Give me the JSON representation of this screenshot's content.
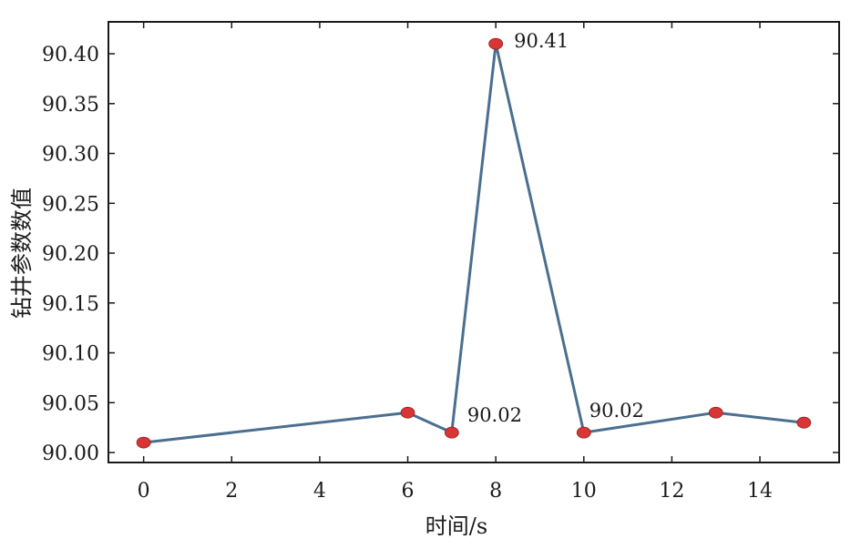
{
  "chart_data": {
    "type": "line",
    "xlabel": "时间/s",
    "ylabel": "钻井参数数值",
    "xlim": [
      -0.8,
      15.8
    ],
    "ylim": [
      89.99,
      90.432
    ],
    "xticks": [
      0,
      2,
      4,
      6,
      8,
      10,
      12,
      14
    ],
    "yticks": [
      "90.00",
      "90.05",
      "90.10",
      "90.15",
      "90.20",
      "90.25",
      "90.30",
      "90.35",
      "90.40"
    ],
    "grid": false,
    "series": [
      {
        "x": [
          0,
          6,
          7,
          8,
          10,
          13,
          15
        ],
        "y": [
          90.01,
          90.04,
          90.02,
          90.41,
          90.02,
          90.04,
          90.03
        ],
        "line_color": "#4a6f8f",
        "marker_color": "#d93535"
      }
    ],
    "annotations": [
      {
        "x": 7,
        "y": 90.02,
        "text": "90.02"
      },
      {
        "x": 8,
        "y": 90.41,
        "text": "90.41"
      },
      {
        "x": 10,
        "y": 90.02,
        "text": "90.02"
      }
    ]
  }
}
